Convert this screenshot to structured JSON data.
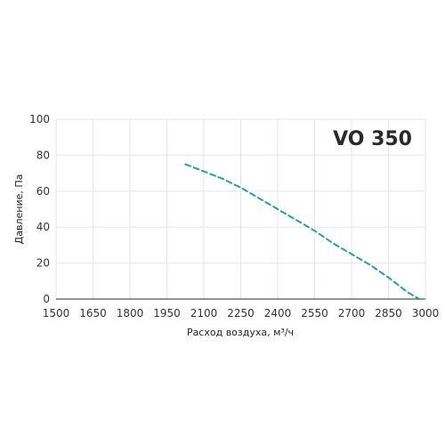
{
  "chart_data": {
    "type": "line",
    "title": "VO 350",
    "xlabel": "Расход воздуха, м³/ч",
    "ylabel": "Давление, Па",
    "xlim": [
      1500,
      3000
    ],
    "ylim": [
      0,
      100
    ],
    "x_ticks": [
      "1500",
      "1650",
      "1800",
      "1950",
      "2100",
      "2250",
      "2400",
      "2550",
      "2700",
      "2850",
      "3000"
    ],
    "y_ticks": [
      "0",
      "20",
      "40",
      "60",
      "80",
      "100"
    ],
    "grid": true,
    "series": [
      {
        "color": "#2a9d9d",
        "dash": true,
        "x": [
          2025,
          2100,
          2175,
          2250,
          2325,
          2400,
          2475,
          2550,
          2625,
          2700,
          2775,
          2850,
          2925,
          2975
        ],
        "y": [
          75,
          71,
          67,
          62,
          56,
          50,
          44,
          38,
          31,
          25,
          19,
          12,
          4,
          0
        ]
      }
    ]
  }
}
